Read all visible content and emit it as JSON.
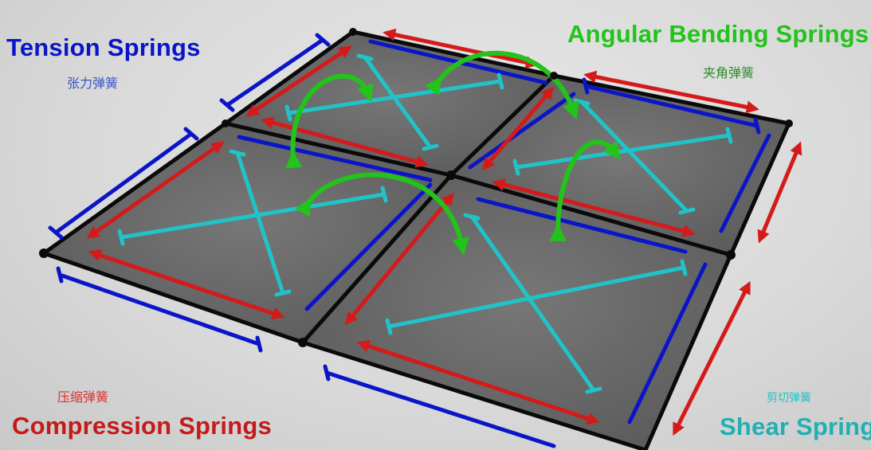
{
  "labels": {
    "tension": {
      "title": "Tension Springs",
      "subtitle": "张力弹簧"
    },
    "angular": {
      "title": "Angular Bending Springs",
      "subtitle": "夹角弹簧"
    },
    "compression": {
      "title": "Compression Springs",
      "subtitle": "压缩弹簧"
    },
    "shear": {
      "title": "Shear Spring",
      "subtitle": "剪切弹簧"
    }
  },
  "colors": {
    "tension": "#0b15c8",
    "compression": "#d41a1a",
    "shear": "#20c4c8",
    "angular": "#22c41a",
    "cell_fill": "#5c5c5c",
    "edge": "#0a0a0a"
  }
}
